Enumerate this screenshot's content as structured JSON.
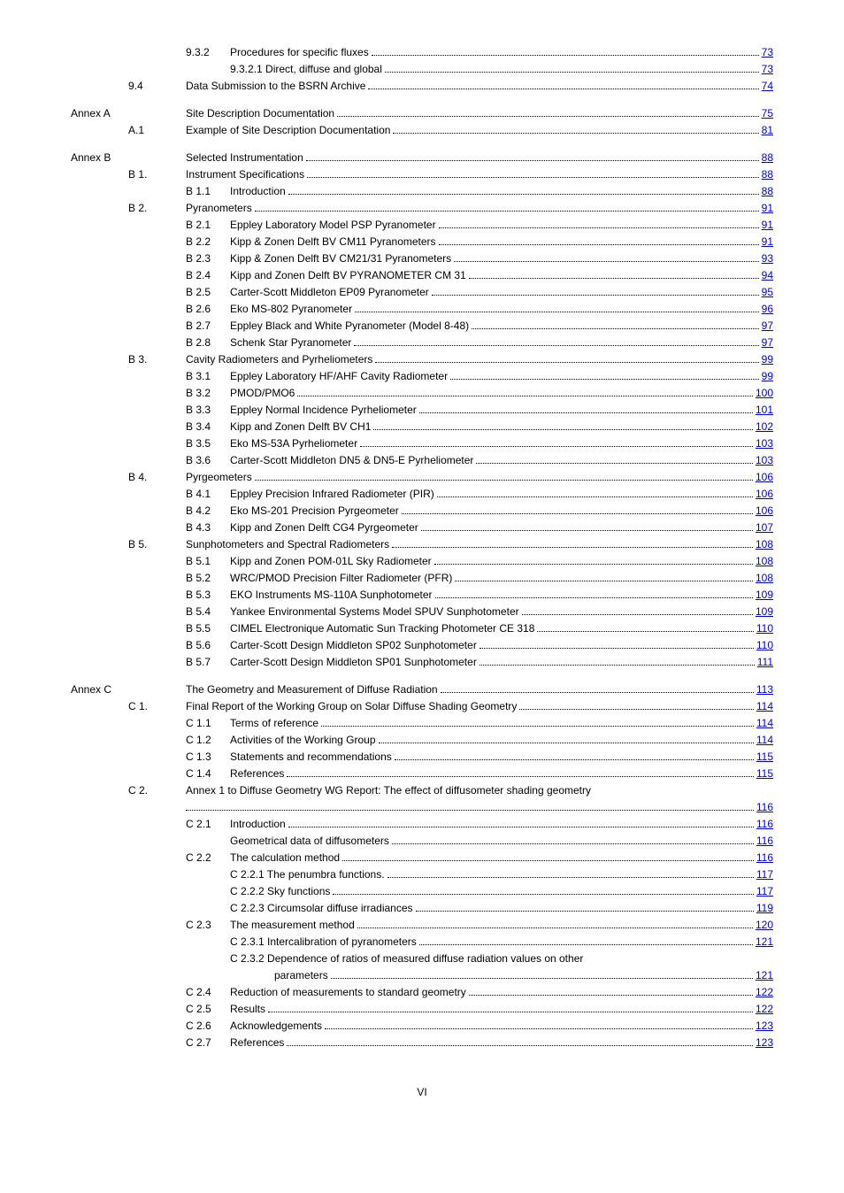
{
  "footer": "VI",
  "entries": [
    {
      "indent": 2,
      "num": "9.3.2",
      "title": "Procedures for specific fluxes",
      "page": "73",
      "numWidth": 50
    },
    {
      "indent": 3,
      "num": "",
      "title": "9.3.2.1  Direct, diffuse and global",
      "page": "73"
    },
    {
      "indent": 1,
      "num": "9.4",
      "title": "Data Submission to the BSRN Archive",
      "page": "74",
      "numWidth": 65
    },
    {
      "gap": true
    },
    {
      "indent": 0,
      "num": "Annex A",
      "title": "Site Description Documentation",
      "page": "75",
      "numWidth": 130
    },
    {
      "indent": 1,
      "num": "A.1",
      "title": "Example of Site Description Documentation",
      "page": "81",
      "numWidth": 65
    },
    {
      "gap": true
    },
    {
      "indent": 0,
      "num": "Annex B",
      "title": "Selected Instrumentation",
      "page": "88",
      "numWidth": 130
    },
    {
      "indent": 1,
      "num": "B 1.",
      "title": "Instrument Specifications",
      "page": "88",
      "numWidth": 65
    },
    {
      "indent": 2,
      "num": "B 1.1",
      "title": "Introduction",
      "page": "88",
      "numWidth": 50
    },
    {
      "indent": 1,
      "num": "B 2.",
      "title": "Pyranometers",
      "page": "91",
      "numWidth": 65
    },
    {
      "indent": 2,
      "num": "B 2.1",
      "title": "Eppley Laboratory Model PSP Pyranometer",
      "page": "91",
      "numWidth": 50
    },
    {
      "indent": 2,
      "num": "B 2.2",
      "title": "Kipp & Zonen Delft BV CM11 Pyranometers",
      "page": "91",
      "numWidth": 50
    },
    {
      "indent": 2,
      "num": "B 2.3",
      "title": "Kipp & Zonen Delft BV CM21/31 Pyranometers",
      "page": "93",
      "numWidth": 50
    },
    {
      "indent": 2,
      "num": "B 2.4",
      "title": "Kipp and Zonen Delft BV  PYRANOMETER CM 31",
      "page": "94",
      "numWidth": 50
    },
    {
      "indent": 2,
      "num": "B 2.5",
      "title": "Carter-Scott Middleton EP09 Pyranometer",
      "page": "95",
      "numWidth": 50
    },
    {
      "indent": 2,
      "num": "B 2.6",
      "title": "Eko MS-802 Pyranometer",
      "page": "96",
      "numWidth": 50
    },
    {
      "indent": 2,
      "num": "B 2.7",
      "title": "Eppley Black and White Pyranometer (Model 8-48)",
      "page": "97",
      "numWidth": 50
    },
    {
      "indent": 2,
      "num": "B 2.8",
      "title": "Schenk Star Pyranometer",
      "page": "97",
      "numWidth": 50
    },
    {
      "indent": 1,
      "num": "B 3.",
      "title": "Cavity Radiometers and Pyrheliometers",
      "page": "99",
      "numWidth": 65
    },
    {
      "indent": 2,
      "num": "B 3.1",
      "title": "Eppley Laboratory HF/AHF Cavity Radiometer",
      "page": "99",
      "numWidth": 50
    },
    {
      "indent": 2,
      "num": "B 3.2",
      "title": "PMOD/PMO6",
      "page": "100",
      "numWidth": 50
    },
    {
      "indent": 2,
      "num": "B 3.3",
      "title": "Eppley Normal Incidence Pyrheliometer",
      "page": "101",
      "numWidth": 50
    },
    {
      "indent": 2,
      "num": "B 3.4",
      "title": "Kipp and Zonen Delft BV CH1",
      "page": "102",
      "numWidth": 50
    },
    {
      "indent": 2,
      "num": "B 3.5",
      "title": "Eko MS-53A Pyrheliometer",
      "page": "103",
      "numWidth": 50
    },
    {
      "indent": 2,
      "num": "B 3.6",
      "title": "Carter-Scott Middleton DN5 & DN5-E Pyrheliometer",
      "page": "103",
      "numWidth": 50
    },
    {
      "indent": 1,
      "num": "B 4.",
      "title": "Pyrgeometers",
      "page": "106",
      "numWidth": 65
    },
    {
      "indent": 2,
      "num": "B 4.1",
      "title": "Eppley Precision Infrared Radiometer (PIR)",
      "page": "106",
      "numWidth": 50
    },
    {
      "indent": 2,
      "num": "B 4.2",
      "title": "Eko MS-201 Precision Pyrgeometer",
      "page": "106",
      "numWidth": 50
    },
    {
      "indent": 2,
      "num": "B 4.3",
      "title": "Kipp and Zonen Delft CG4 Pyrgeometer",
      "page": "107",
      "numWidth": 50
    },
    {
      "indent": 1,
      "num": "B 5.",
      "title": "Sunphotometers and Spectral Radiometers",
      "page": "108",
      "numWidth": 65
    },
    {
      "indent": 2,
      "num": "B 5.1",
      "title": "Kipp and Zonen POM-01L Sky Radiometer",
      "page": "108",
      "numWidth": 50
    },
    {
      "indent": 2,
      "num": "B 5.2",
      "title": "WRC/PMOD Precision Filter Radiometer (PFR)",
      "page": "108",
      "numWidth": 50
    },
    {
      "indent": 2,
      "num": "B 5.3",
      "title": "EKO Instruments MS-110A  Sunphotometer",
      "page": "109",
      "numWidth": 50
    },
    {
      "indent": 2,
      "num": "B 5.4",
      "title": "Yankee Environmental Systems Model SPUV Sunphotometer",
      "page": "109",
      "numWidth": 50
    },
    {
      "indent": 2,
      "num": "B 5.5",
      "title": "CIMEL Electronique Automatic Sun Tracking Photometer CE 318",
      "page": "110",
      "numWidth": 50
    },
    {
      "indent": 2,
      "num": "B 5.6",
      "title": "Carter-Scott Design Middleton SP02 Sunphotometer",
      "page": "110",
      "numWidth": 50
    },
    {
      "indent": 2,
      "num": "B 5.7",
      "title": "Carter-Scott Design Middleton SP01 Sunphotometer",
      "page": "111",
      "numWidth": 50
    },
    {
      "gap": true
    },
    {
      "indent": 0,
      "num": "Annex C",
      "title": "The Geometry and Measurement of Diffuse Radiation",
      "page": "113",
      "numWidth": 130
    },
    {
      "indent": 1,
      "num": "C 1.",
      "title": "Final Report of the Working Group on Solar Diffuse Shading Geometry",
      "page": "114",
      "numWidth": 65
    },
    {
      "indent": 2,
      "num": "C 1.1",
      "title": "Terms of reference",
      "page": "114",
      "numWidth": 50
    },
    {
      "indent": 2,
      "num": "C 1.2",
      "title": "Activities of the Working Group",
      "page": "114",
      "numWidth": 50
    },
    {
      "indent": 2,
      "num": "C 1.3",
      "title": "Statements and recommendations",
      "page": "115",
      "numWidth": 50
    },
    {
      "indent": 2,
      "num": "C 1.4",
      "title": "References",
      "page": "115",
      "numWidth": 50
    },
    {
      "indent": 1,
      "num": "C 2.",
      "title": "Annex 1 to Diffuse Geometry WG Report: The effect of diffusometer shading geometry",
      "page": "",
      "numWidth": 65,
      "nowrap": true
    },
    {
      "indent": 2,
      "num": "",
      "title": "",
      "page": "116",
      "numWidth": 50,
      "leadDots": true
    },
    {
      "indent": 2,
      "num": "C 2.1",
      "title": "Introduction",
      "page": "116",
      "numWidth": 50
    },
    {
      "indent": 2,
      "num": "",
      "title": "Geometrical data of diffusometers",
      "page": "116",
      "numWidth": 50
    },
    {
      "indent": 2,
      "num": "C 2.2",
      "title": "The calculation method",
      "page": "116",
      "numWidth": 50
    },
    {
      "indent": 3,
      "num": "",
      "title": "C 2.2.1  The penumbra functions.",
      "page": "117"
    },
    {
      "indent": 3,
      "num": "",
      "title": "C 2.2.2  Sky functions",
      "page": "117"
    },
    {
      "indent": 3,
      "num": "",
      "title": "C 2.2.3  Circumsolar diffuse irradiances",
      "page": "119"
    },
    {
      "indent": 2,
      "num": "C 2.3",
      "title": "The measurement method",
      "page": "120",
      "numWidth": 50
    },
    {
      "indent": 3,
      "num": "",
      "title": "C 2.3.1  Intercalibration of pyranometers",
      "page": "121"
    },
    {
      "indent": 3,
      "num": "",
      "title": "C 2.3.2  Dependence of ratios of measured diffuse radiation values on other",
      "page": "",
      "nowrap": true
    },
    {
      "indent": 4,
      "num": "",
      "title": "parameters",
      "page": "121"
    },
    {
      "indent": 2,
      "num": "C 2.4",
      "title": "Reduction of  measurements to standard geometry",
      "page": "122",
      "numWidth": 50
    },
    {
      "indent": 2,
      "num": "C 2.5",
      "title": "Results",
      "page": "122",
      "numWidth": 50
    },
    {
      "indent": 2,
      "num": "C 2.6",
      "title": "Acknowledgements",
      "page": "123",
      "numWidth": 50
    },
    {
      "indent": 2,
      "num": "C 2.7",
      "title": "References",
      "page": "123",
      "numWidth": 50
    }
  ]
}
